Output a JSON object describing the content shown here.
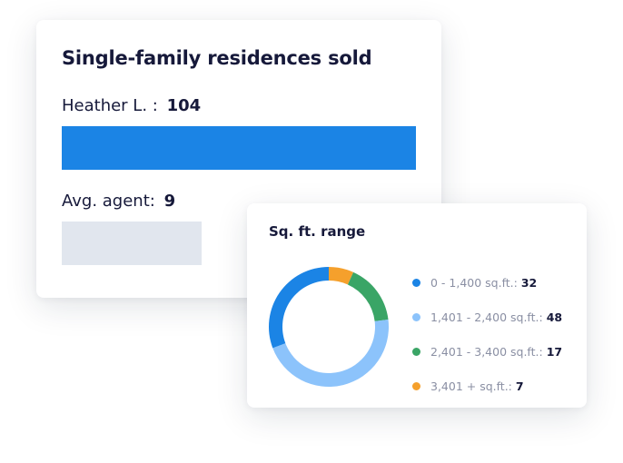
{
  "colors": {
    "blue": "#1b84e5",
    "light_blue": "#8cc3fb",
    "green": "#3aa566",
    "orange": "#f5a02c",
    "grey_bar": "#e1e6ee",
    "text_dark": "#16193a",
    "text_muted": "#8a8fa3"
  },
  "sales_card": {
    "title": "Single-family residences sold"
  },
  "range_card": {
    "title": "Sq. ft. range"
  },
  "chart_data": [
    {
      "type": "bar",
      "orientation": "horizontal",
      "title": "Single-family residences sold",
      "categories": [
        "Heather L.",
        "Avg. agent"
      ],
      "values": [
        104,
        9
      ],
      "colors": [
        "#1b84e5",
        "#e1e6ee"
      ],
      "grid": false,
      "legend": "none"
    },
    {
      "type": "pie",
      "variant": "donut",
      "title": "Sq. ft. range",
      "categories": [
        "0 - 1,400 sq.ft.:",
        "1,401 - 2,400 sq.ft.:",
        "2,401 - 3,400 sq.ft.:",
        "3,401 + sq.ft.:"
      ],
      "values": [
        32,
        48,
        17,
        7
      ],
      "colors": [
        "#1b84e5",
        "#8cc3fb",
        "#3aa566",
        "#f5a02c"
      ],
      "legend": "right"
    }
  ]
}
